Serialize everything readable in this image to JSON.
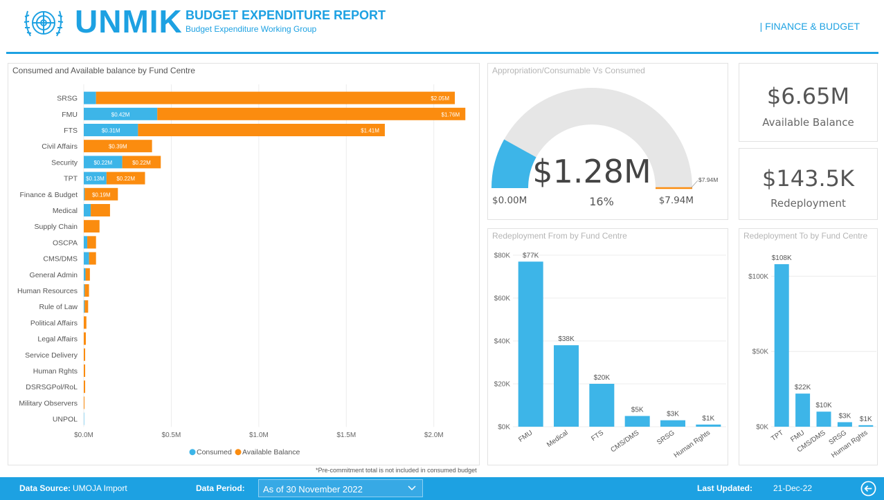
{
  "header": {
    "logo_text": "UNMIK",
    "report_title": "BUDGET EXPENDITURE REPORT",
    "report_subtitle": "Budget Expenditure Working Group",
    "section_tag": "| FINANCE & BUDGET"
  },
  "colors": {
    "accent": "#1da1e2",
    "consumed": "#3db5e8",
    "available": "#fb8c0f",
    "gauge_bg": "#e6e6e6"
  },
  "chart_data": [
    {
      "type": "bar",
      "orientation": "horizontal-stacked",
      "title": "Consumed and Available balance  by Fund Centre",
      "categories": [
        "SRSG",
        "FMU",
        "FTS",
        "Civil Affairs",
        "Security",
        "TPT",
        "Finance & Budget",
        "Medical",
        "Supply Chain",
        "OSCPA",
        "CMS/DMS",
        "General Admin",
        "Human Resources",
        "Rule of Law",
        "Political Affairs",
        "Legal Affairs",
        "Service Delivery",
        "Human Rghts",
        "DSRSGPol/RoL",
        "Military Observers",
        "UNPOL"
      ],
      "series": [
        {
          "name": "Consumed",
          "values": [
            0.07,
            0.42,
            0.31,
            0.0,
            0.22,
            0.13,
            0.005,
            0.04,
            0.0,
            0.02,
            0.03,
            0.01,
            0.005,
            0.005,
            0.0,
            0.0,
            0.0,
            0.0,
            0.0,
            0.0,
            0.002
          ],
          "labels": [
            "",
            "$0.42M",
            "$0.31M",
            "",
            "$0.22M",
            "$0.13M",
            "",
            "",
            "",
            "",
            "",
            "",
            "",
            "",
            "",
            "",
            "",
            "",
            "",
            "",
            ""
          ]
        },
        {
          "name": "Available Balance",
          "values": [
            2.05,
            1.76,
            1.41,
            0.39,
            0.22,
            0.22,
            0.19,
            0.11,
            0.09,
            0.05,
            0.04,
            0.025,
            0.025,
            0.02,
            0.015,
            0.012,
            0.008,
            0.008,
            0.008,
            0.004,
            0.0
          ],
          "labels": [
            "$2.05M",
            "$1.76M",
            "$1.41M",
            "$0.39M",
            "$0.22M",
            "$0.22M",
            "$0.19M",
            "",
            "",
            "",
            "",
            "",
            "",
            "",
            "",
            "",
            "",
            "",
            "",
            "",
            ""
          ]
        }
      ],
      "x_ticks": [
        "$0.0M",
        "$0.5M",
        "$1.0M",
        "$1.5M",
        "$2.0M"
      ],
      "xlim": [
        0,
        2.25
      ],
      "legend": [
        "Consumed",
        "Available Balance"
      ],
      "legend_position": "bottom"
    },
    {
      "type": "gauge",
      "title": "Appropriation/Consumable Vs Consumed",
      "value_label": "$1.28M",
      "value": 1.28,
      "min_label": "$0.00M",
      "max_label": "$7.94M",
      "target_label": "$7.94M",
      "max": 7.94,
      "percent_label": "16%"
    },
    {
      "type": "bar",
      "title": "Redeployment From by Fund Centre",
      "categories": [
        "FMU",
        "Medical",
        "FTS",
        "CMS/DMS",
        "SRSG",
        "Human Rghts"
      ],
      "values": [
        77,
        38,
        20,
        5,
        3,
        1
      ],
      "labels": [
        "$77K",
        "$38K",
        "$20K",
        "$5K",
        "$3K",
        "$1K"
      ],
      "y_ticks": [
        "$0K",
        "$20K",
        "$40K",
        "$60K",
        "$80K"
      ],
      "ylim": [
        0,
        80
      ]
    },
    {
      "type": "bar",
      "title": "Redeployment To by Fund Centre",
      "categories": [
        "TPT",
        "FMU",
        "CMS/DMS",
        "SRSG",
        "Human Rghts"
      ],
      "values": [
        108,
        22,
        10,
        3,
        1
      ],
      "labels": [
        "$108K",
        "$22K",
        "$10K",
        "$3K",
        "$1K"
      ],
      "y_ticks": [
        "$0K",
        "$50K",
        "$100K"
      ],
      "ylim": [
        0,
        108
      ]
    }
  ],
  "kpis": [
    {
      "value": "$6.65M",
      "label": "Available Balance"
    },
    {
      "value": "$143.5K",
      "label": "Redeployment"
    }
  ],
  "note": "*Pre-commitment total is not included in consumed budget",
  "footer": {
    "data_source_label": "Data Source:",
    "data_source_value": "UMOJA Import",
    "data_period_label": "Data Period:",
    "data_period_value": "As of 30 November 2022",
    "last_updated_label": "Last Updated:",
    "last_updated_value": "21-Dec-22"
  }
}
